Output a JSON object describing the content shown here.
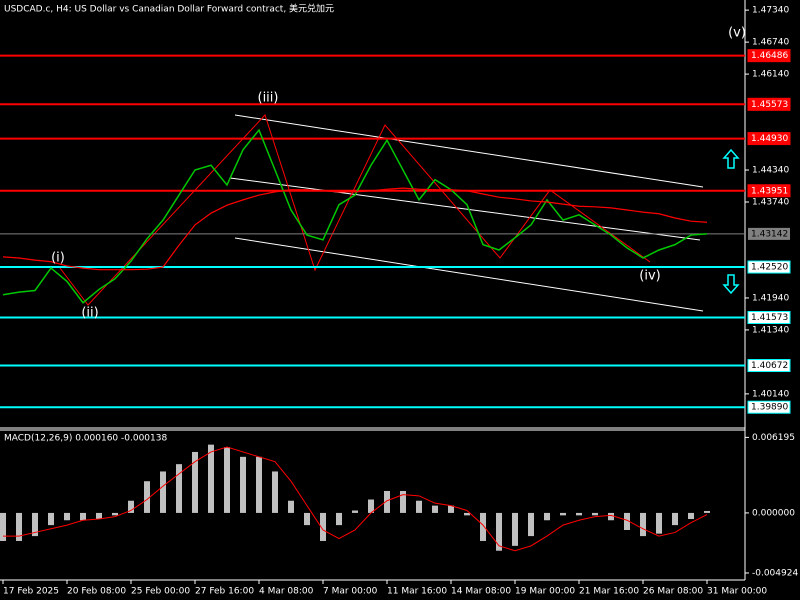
{
  "chart_data": {
    "type": "line",
    "title": "USDCAD.c, H4:  US Dollar vs Canadian Dollar Forward contract, 美元兑加元",
    "categories": [
      "17 Feb 2025",
      null,
      null,
      null,
      "20 Feb 08:00",
      null,
      null,
      null,
      "25 Feb 00:00",
      null,
      null,
      null,
      "27 Feb 16:00",
      null,
      null,
      null,
      "4 Mar 08:00",
      null,
      null,
      null,
      "7 Mar 00:00",
      null,
      null,
      null,
      "11 Mar 16:00",
      null,
      null,
      null,
      "14 Mar 08:00",
      null,
      null,
      null,
      "19 Mar 00:00",
      null,
      null,
      null,
      "21 Mar 16:00",
      null,
      null,
      null,
      "26 Mar 08:00",
      null,
      null,
      null,
      "31 Mar 00:00"
    ],
    "series": [
      {
        "color": "#00c800",
        "values": [
          1.42,
          1.4205,
          1.4208,
          1.425,
          1.4225,
          1.4185,
          1.421,
          1.423,
          1.4263,
          1.4305,
          1.434,
          1.4387,
          1.4434,
          1.4443,
          1.4406,
          1.4472,
          1.4509,
          1.4434,
          1.4359,
          1.4312,
          1.4303,
          1.4369,
          1.4387,
          1.4443,
          1.449,
          1.4434,
          1.4378,
          1.4416,
          1.4397,
          1.4369,
          1.4294,
          1.4284,
          1.4307,
          1.4331,
          1.4378,
          1.434,
          1.435,
          1.4331,
          1.4312,
          1.4288,
          1.4269,
          1.4284,
          1.4294,
          1.4312,
          1.43142
        ]
      },
      {
        "color": "#ff0000",
        "values": [
          1.4271,
          1.4269,
          1.4265,
          1.4262,
          1.4254,
          1.425,
          1.4247,
          1.4247,
          1.4247,
          1.4248,
          1.4252,
          1.4293,
          1.4331,
          1.4353,
          1.4368,
          1.4378,
          1.4387,
          1.4393,
          1.4397,
          1.4397,
          1.4395,
          1.4393,
          1.4393,
          1.4395,
          1.4398,
          1.44,
          1.4398,
          1.4397,
          1.4397,
          1.4395,
          1.4389,
          1.4383,
          1.438,
          1.4376,
          1.4374,
          1.437,
          1.4366,
          1.4365,
          1.4363,
          1.4359,
          1.4355,
          1.4352,
          1.4344,
          1.4338,
          1.4336
        ]
      }
    ],
    "ylim": [
      1.395,
      1.4753
    ],
    "yticks": [
      {
        "value": 1.4734,
        "label": "1.47340"
      },
      {
        "value": 1.4674,
        "label": "1.46740"
      },
      {
        "value": 1.4614,
        "label": "1.46140"
      },
      {
        "value": 1.4434,
        "label": "1.44340"
      },
      {
        "value": 1.4374,
        "label": "1.43740"
      },
      {
        "value": 1.4194,
        "label": "1.41940"
      },
      {
        "value": 1.4134,
        "label": "1.41340"
      },
      {
        "value": 1.4014,
        "label": "1.40140"
      }
    ],
    "resistance_levels": {
      "color": "#ff0000",
      "values": [
        1.46486,
        1.45573,
        {
          "value": 1.4493,
          "label": "1.44930"
        },
        1.43951
      ]
    },
    "support_levels": {
      "color": "#00ffff",
      "values": [
        {
          "value": 1.4252,
          "label": "1.42520"
        },
        1.41573,
        1.40672,
        {
          "value": 1.3989,
          "label": "1.39890"
        }
      ]
    },
    "current_price": {
      "color": "#808080",
      "value": 1.43142
    },
    "wave_labels": [
      "(i)",
      "(ii)",
      "(iii)",
      "(iv)",
      "(v)"
    ],
    "macd": {
      "title": "MACD(12,26,9) 0.000160 -0.000138",
      "ylim": [
        -0.0055,
        0.0068
      ],
      "yticks": [
        0.006195,
        {
          "value": 0,
          "label": "0.000000"
        },
        -0.004924
      ],
      "histogram": {
        "color": "#c0c0c0",
        "values": [
          -0.0023,
          -0.0023,
          -0.0019,
          -0.001,
          -0.0006,
          -0.0006,
          -0.0005,
          -0.0002,
          0.001,
          0.0026,
          0.0034,
          0.004,
          0.005,
          0.0056,
          0.0054,
          0.0046,
          0.0046,
          0.0034,
          0.001,
          -0.001,
          -0.0023,
          -0.001,
          0.0002,
          0.0011,
          0.0018,
          0.0018,
          0.001,
          0.0006,
          0.0006,
          -0.0002,
          -0.0023,
          -0.0031,
          -0.0027,
          -0.0019,
          -0.0006,
          -0.0002,
          -0.0002,
          -0.0002,
          -0.0006,
          -0.0014,
          -0.0019,
          -0.0017,
          -0.001,
          -0.0005,
          0.00016
        ]
      },
      "signal": {
        "color": "#ff0000",
        "values": [
          -0.0019,
          -0.0019,
          -0.0016,
          -0.0013,
          -0.001,
          -0.0006,
          -0.0005,
          -0.0003,
          0.0002,
          0.0011,
          0.0022,
          0.0032,
          0.0042,
          0.005,
          0.0054,
          0.005,
          0.0046,
          0.0042,
          0.0026,
          0.0006,
          -0.0014,
          -0.0021,
          -0.0014,
          0.0,
          0.001,
          0.0015,
          0.0014,
          0.0008,
          0.0006,
          0.0002,
          -0.001,
          -0.0027,
          -0.0031,
          -0.0027,
          -0.0019,
          -0.001,
          -0.0006,
          -0.0003,
          -0.0002,
          -0.0006,
          -0.0013,
          -0.0019,
          -0.0016,
          -0.0008,
          -0.000138
        ]
      }
    }
  }
}
